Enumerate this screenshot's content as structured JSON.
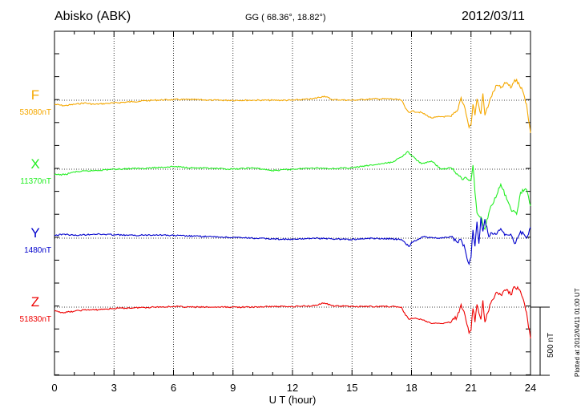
{
  "header": {
    "station": "Abisko (ABK)",
    "coords": "GG ( 68.36°,  18.82°)",
    "date": "2012/03/11"
  },
  "plotted_note": "Plotted at 2012/04/11 01:00 UT",
  "scale_label": "500 nT",
  "chart_data": {
    "type": "line",
    "title": "Abisko (ABK)",
    "xlabel": "U T (hour)",
    "ylabel": "",
    "xlim": [
      0,
      24
    ],
    "xticks": [
      0,
      3,
      6,
      9,
      12,
      15,
      18,
      21,
      24
    ],
    "grid": true,
    "scale_bar_nT": 500,
    "series": [
      {
        "name": "F",
        "baseline_label": "53080nT",
        "baseline": 53080,
        "color": "#f5a800",
        "x": [
          0,
          0.5,
          1,
          1.5,
          2,
          3,
          4,
          5,
          6,
          7,
          8,
          9,
          10,
          11,
          12,
          13,
          13.6,
          14,
          15,
          16,
          17,
          17.5,
          17.7,
          17.9,
          18,
          18.5,
          19,
          19.5,
          20,
          20.3,
          20.5,
          20.7,
          20.8,
          20.9,
          21,
          21.1,
          21.2,
          21.3,
          21.5,
          21.6,
          21.7,
          22,
          22.3,
          22.5,
          22.8,
          23,
          23.2,
          23.4,
          23.6,
          23.8,
          24
        ],
        "y": [
          53050,
          53040,
          53050,
          53060,
          53050,
          53060,
          53070,
          53080,
          53085,
          53085,
          53080,
          53080,
          53080,
          53080,
          53080,
          53090,
          53110,
          53085,
          53080,
          53090,
          53090,
          53080,
          53020,
          52990,
          53000,
          52990,
          52950,
          52960,
          52960,
          53000,
          53100,
          53020,
          52950,
          52880,
          52900,
          53050,
          52970,
          53090,
          52980,
          53130,
          52970,
          53100,
          53190,
          53170,
          53210,
          53170,
          53230,
          53210,
          53150,
          53050,
          52840
        ]
      },
      {
        "name": "X",
        "baseline_label": "11370nT",
        "baseline": 11370,
        "color": "#22ee22",
        "x": [
          0,
          0.5,
          1,
          2,
          3,
          4,
          5,
          6,
          7,
          8,
          9,
          10,
          11,
          12,
          13,
          14,
          15,
          16,
          17,
          17.5,
          17.8,
          18,
          18.5,
          19,
          19.5,
          20,
          20.5,
          21,
          21.1,
          21.2,
          21.3,
          21.5,
          21.7,
          21.9,
          22,
          22.3,
          22.5,
          22.8,
          23,
          23.3,
          23.5,
          23.8,
          24
        ],
        "y": [
          11330,
          11330,
          11350,
          11360,
          11370,
          11375,
          11380,
          11390,
          11380,
          11375,
          11370,
          11380,
          11360,
          11370,
          11380,
          11375,
          11380,
          11400,
          11420,
          11460,
          11500,
          11470,
          11410,
          11430,
          11370,
          11380,
          11310,
          11290,
          11400,
          11200,
          11050,
          11020,
          10930,
          11050,
          11100,
          11180,
          11260,
          11150,
          11080,
          11040,
          11200,
          11220,
          11100
        ]
      },
      {
        "name": "Y",
        "baseline_label": "1480nT",
        "baseline": 1480,
        "color": "#0000cc",
        "x": [
          0,
          0.5,
          1,
          2,
          3,
          4,
          5,
          6,
          7,
          8,
          9,
          10,
          11,
          12,
          13,
          14,
          15,
          16,
          17,
          17.5,
          17.7,
          17.9,
          18,
          18.3,
          18.6,
          19,
          19.5,
          20,
          20.3,
          20.5,
          20.7,
          20.8,
          20.9,
          21,
          21.1,
          21.2,
          21.3,
          21.4,
          21.5,
          21.6,
          21.7,
          21.9,
          22,
          22.3,
          22.5,
          22.7,
          23,
          23.2,
          23.5,
          23.8,
          24
        ],
        "y": [
          1500,
          1510,
          1500,
          1510,
          1505,
          1500,
          1505,
          1500,
          1495,
          1490,
          1485,
          1480,
          1475,
          1470,
          1480,
          1475,
          1470,
          1480,
          1475,
          1470,
          1440,
          1420,
          1450,
          1470,
          1490,
          1485,
          1480,
          1490,
          1450,
          1470,
          1400,
          1330,
          1290,
          1340,
          1540,
          1420,
          1600,
          1440,
          1630,
          1530,
          1620,
          1490,
          1520,
          1510,
          1550,
          1500,
          1510,
          1440,
          1530,
          1480,
          1560
        ]
      },
      {
        "name": "Z",
        "baseline_label": "51830nT",
        "baseline": 51830,
        "color": "#ee0000",
        "x": [
          0,
          0.5,
          1,
          1.5,
          2,
          3,
          4,
          5,
          6,
          7,
          8,
          9,
          10,
          11,
          12,
          13,
          13.6,
          14,
          15,
          16,
          17,
          17.5,
          17.7,
          17.9,
          18,
          18.5,
          19,
          19.5,
          20,
          20.3,
          20.5,
          20.7,
          20.8,
          20.9,
          21,
          21.1,
          21.2,
          21.3,
          21.5,
          21.6,
          21.7,
          22,
          22.3,
          22.5,
          22.8,
          23,
          23.2,
          23.4,
          23.6,
          23.8,
          24
        ],
        "y": [
          51800,
          51790,
          51800,
          51810,
          51810,
          51820,
          51825,
          51830,
          51835,
          51830,
          51830,
          51830,
          51830,
          51835,
          51835,
          51840,
          51860,
          51840,
          51835,
          51835,
          51835,
          51830,
          51770,
          51740,
          51750,
          51740,
          51710,
          51710,
          51720,
          51760,
          51850,
          51770,
          51700,
          51640,
          51660,
          51820,
          51720,
          51850,
          51740,
          51880,
          51720,
          51860,
          51940,
          51920,
          51960,
          51920,
          51980,
          51960,
          51900,
          51790,
          51600
        ]
      }
    ]
  }
}
